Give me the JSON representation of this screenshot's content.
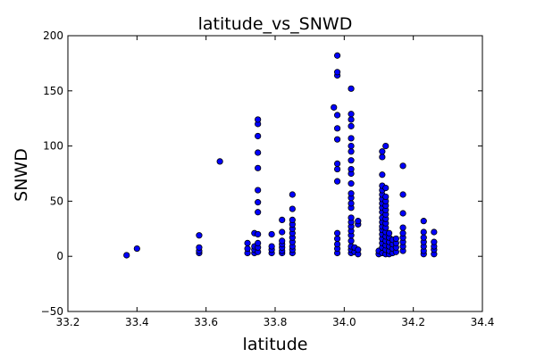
{
  "chart_data": {
    "type": "scatter",
    "title": "latitude_vs_SNWD",
    "xlabel": "latitude",
    "ylabel": "SNWD",
    "xlim": [
      33.2,
      34.4
    ],
    "ylim": [
      -50,
      200
    ],
    "xticks": [
      "33.2",
      "33.4",
      "33.6",
      "33.8",
      "34.0",
      "34.2",
      "34.4"
    ],
    "yticks": [
      "−50",
      "0",
      "50",
      "100",
      "150",
      "200"
    ],
    "grid": false,
    "marker_color": "#0000ff",
    "series": [
      {
        "points": [
          [
            33.37,
            1
          ],
          [
            33.4,
            7
          ],
          [
            33.58,
            3
          ],
          [
            33.58,
            5
          ],
          [
            33.58,
            8
          ],
          [
            33.58,
            19
          ],
          [
            33.64,
            86
          ],
          [
            33.72,
            3
          ],
          [
            33.72,
            7
          ],
          [
            33.72,
            12
          ],
          [
            33.74,
            3
          ],
          [
            33.74,
            6
          ],
          [
            33.74,
            9
          ],
          [
            33.74,
            21
          ],
          [
            33.75,
            4
          ],
          [
            33.75,
            8
          ],
          [
            33.75,
            12
          ],
          [
            33.75,
            20
          ],
          [
            33.75,
            40
          ],
          [
            33.75,
            49
          ],
          [
            33.75,
            60
          ],
          [
            33.75,
            80
          ],
          [
            33.75,
            94
          ],
          [
            33.75,
            109
          ],
          [
            33.75,
            120
          ],
          [
            33.75,
            124
          ],
          [
            33.79,
            3
          ],
          [
            33.79,
            6
          ],
          [
            33.79,
            9
          ],
          [
            33.79,
            20
          ],
          [
            33.82,
            3
          ],
          [
            33.82,
            5
          ],
          [
            33.82,
            8
          ],
          [
            33.82,
            11
          ],
          [
            33.82,
            14
          ],
          [
            33.82,
            22
          ],
          [
            33.82,
            33
          ],
          [
            33.85,
            3
          ],
          [
            33.85,
            6
          ],
          [
            33.85,
            9
          ],
          [
            33.85,
            13
          ],
          [
            33.85,
            17
          ],
          [
            33.85,
            21
          ],
          [
            33.85,
            25
          ],
          [
            33.85,
            29
          ],
          [
            33.85,
            33
          ],
          [
            33.85,
            43
          ],
          [
            33.85,
            56
          ],
          [
            33.97,
            135
          ],
          [
            33.98,
            3
          ],
          [
            33.98,
            7
          ],
          [
            33.98,
            11
          ],
          [
            33.98,
            16
          ],
          [
            33.98,
            21
          ],
          [
            33.98,
            68
          ],
          [
            33.98,
            79
          ],
          [
            33.98,
            84
          ],
          [
            33.98,
            106
          ],
          [
            33.98,
            116
          ],
          [
            33.98,
            128
          ],
          [
            33.98,
            164
          ],
          [
            33.98,
            167
          ],
          [
            33.98,
            182
          ],
          [
            34.02,
            3
          ],
          [
            34.02,
            6
          ],
          [
            34.02,
            9
          ],
          [
            34.02,
            14
          ],
          [
            34.02,
            19
          ],
          [
            34.02,
            23
          ],
          [
            34.02,
            27
          ],
          [
            34.02,
            31
          ],
          [
            34.02,
            35
          ],
          [
            34.02,
            44
          ],
          [
            34.02,
            48
          ],
          [
            34.02,
            53
          ],
          [
            34.02,
            57
          ],
          [
            34.02,
            66
          ],
          [
            34.02,
            75
          ],
          [
            34.02,
            79
          ],
          [
            34.02,
            87
          ],
          [
            34.02,
            95
          ],
          [
            34.02,
            100
          ],
          [
            34.02,
            107
          ],
          [
            34.02,
            118
          ],
          [
            34.02,
            124
          ],
          [
            34.02,
            129
          ],
          [
            34.02,
            152
          ],
          [
            34.03,
            4
          ],
          [
            34.03,
            8
          ],
          [
            34.04,
            2
          ],
          [
            34.04,
            6
          ],
          [
            34.04,
            29
          ],
          [
            34.04,
            32
          ],
          [
            34.1,
            2
          ],
          [
            34.1,
            5
          ],
          [
            34.11,
            3
          ],
          [
            34.11,
            8
          ],
          [
            34.11,
            12
          ],
          [
            34.11,
            16
          ],
          [
            34.11,
            20
          ],
          [
            34.11,
            24
          ],
          [
            34.11,
            27
          ],
          [
            34.11,
            31
          ],
          [
            34.11,
            35
          ],
          [
            34.11,
            40
          ],
          [
            34.11,
            44
          ],
          [
            34.11,
            48
          ],
          [
            34.11,
            52
          ],
          [
            34.11,
            56
          ],
          [
            34.11,
            60
          ],
          [
            34.11,
            64
          ],
          [
            34.11,
            74
          ],
          [
            34.11,
            90
          ],
          [
            34.11,
            95
          ],
          [
            34.12,
            2
          ],
          [
            34.12,
            6
          ],
          [
            34.12,
            10
          ],
          [
            34.12,
            14
          ],
          [
            34.12,
            18
          ],
          [
            34.12,
            22
          ],
          [
            34.12,
            26
          ],
          [
            34.12,
            30
          ],
          [
            34.12,
            34
          ],
          [
            34.12,
            38
          ],
          [
            34.12,
            42
          ],
          [
            34.12,
            46
          ],
          [
            34.12,
            50
          ],
          [
            34.12,
            54
          ],
          [
            34.12,
            62
          ],
          [
            34.12,
            100
          ],
          [
            34.13,
            2
          ],
          [
            34.13,
            5
          ],
          [
            34.13,
            9
          ],
          [
            34.13,
            13
          ],
          [
            34.13,
            17
          ],
          [
            34.13,
            21
          ],
          [
            34.14,
            3
          ],
          [
            34.14,
            7
          ],
          [
            34.14,
            11
          ],
          [
            34.14,
            15
          ],
          [
            34.15,
            4
          ],
          [
            34.15,
            8
          ],
          [
            34.15,
            12
          ],
          [
            34.15,
            16
          ],
          [
            34.17,
            5
          ],
          [
            34.17,
            9
          ],
          [
            34.17,
            13
          ],
          [
            34.17,
            17
          ],
          [
            34.17,
            21
          ],
          [
            34.17,
            26
          ],
          [
            34.17,
            39
          ],
          [
            34.17,
            56
          ],
          [
            34.17,
            82
          ],
          [
            34.23,
            2
          ],
          [
            34.23,
            5
          ],
          [
            34.23,
            9
          ],
          [
            34.23,
            13
          ],
          [
            34.23,
            17
          ],
          [
            34.23,
            22
          ],
          [
            34.23,
            32
          ],
          [
            34.26,
            2
          ],
          [
            34.26,
            6
          ],
          [
            34.26,
            9
          ],
          [
            34.26,
            13
          ],
          [
            34.26,
            22
          ]
        ]
      }
    ]
  }
}
